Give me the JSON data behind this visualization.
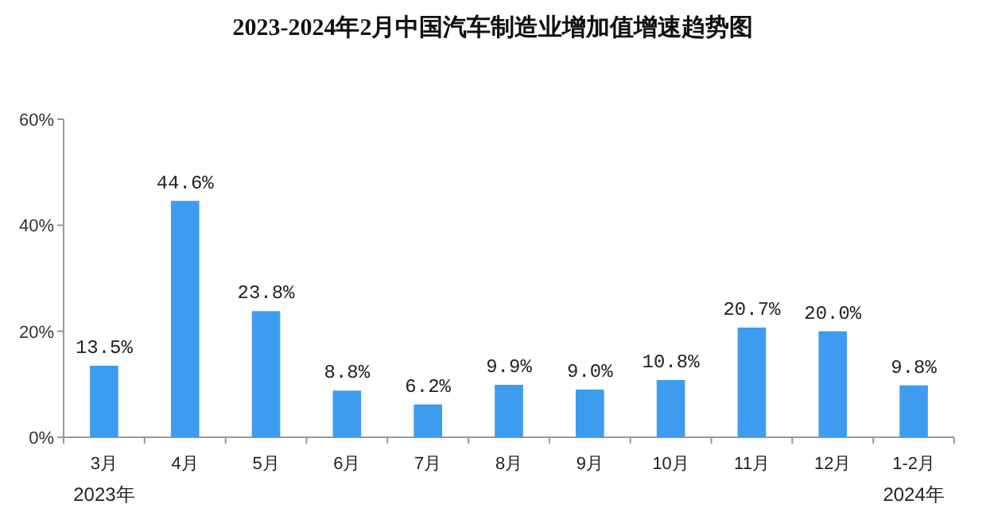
{
  "chart_data": {
    "type": "bar",
    "title": "2023-2024年2月中国汽车制造业增加值增速趋势图",
    "categories": [
      "3月",
      "4月",
      "5月",
      "6月",
      "7月",
      "8月",
      "9月",
      "10月",
      "11月",
      "12月",
      "1-2月"
    ],
    "values": [
      13.5,
      44.6,
      23.8,
      8.8,
      6.2,
      9.9,
      9.0,
      10.8,
      20.7,
      20.0,
      9.8
    ],
    "value_labels": [
      "13.5%",
      "44.6%",
      "23.8%",
      "8.8%",
      "6.2%",
      "9.9%",
      "9.0%",
      "10.8%",
      "20.7%",
      "20.0%",
      "9.8%"
    ],
    "color": "#3d9cf0",
    "ylim": [
      0,
      60
    ],
    "yticks": [
      {
        "value": 0,
        "label": "0%"
      },
      {
        "value": 20,
        "label": "20%"
      },
      {
        "value": 40,
        "label": "40%"
      },
      {
        "value": 60,
        "label": "60%"
      }
    ],
    "annotations": [
      "2023年",
      "2024年"
    ],
    "grid": false
  }
}
